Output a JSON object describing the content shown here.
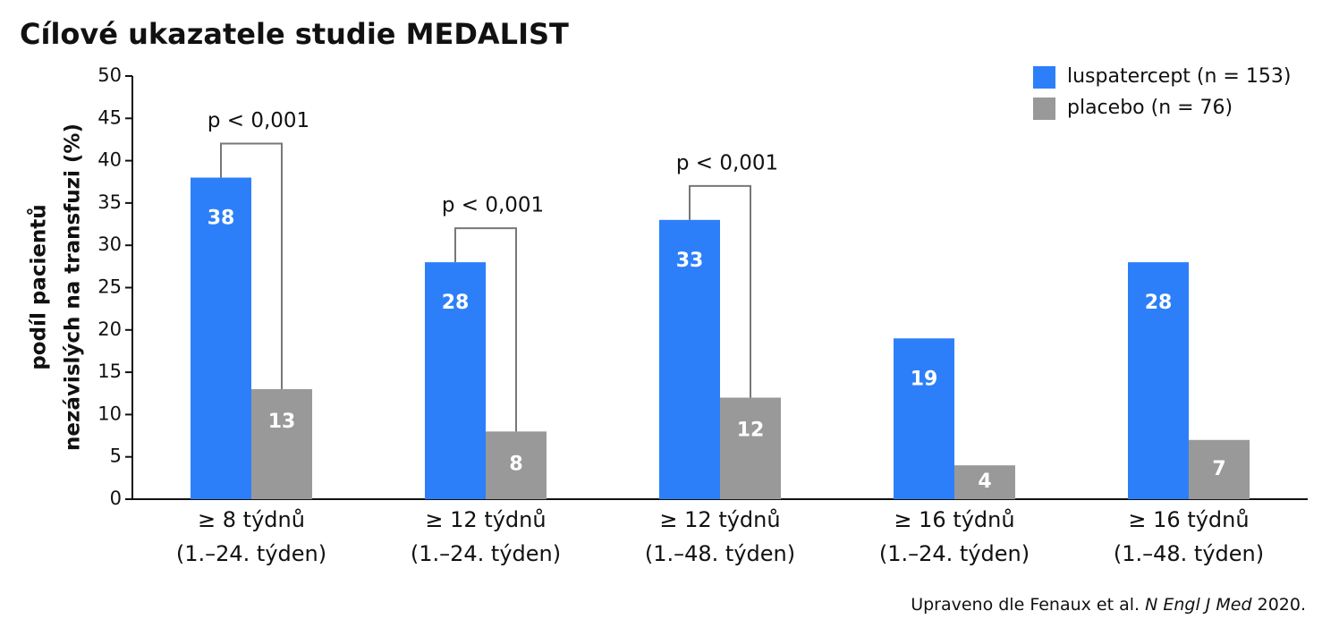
{
  "chart_data": {
    "type": "bar",
    "title": "Cílové ukazatele studie MEDALIST",
    "ylabel": [
      "podíl pacientů",
      "nezávislých na transfuzi (%)"
    ],
    "categories": [
      [
        "≥ 8 týdnů",
        "(1.–24. týden)"
      ],
      [
        "≥ 12 týdnů",
        "(1.–24. týden)"
      ],
      [
        "≥ 12 týdnů",
        "(1.–48. týden)"
      ],
      [
        "≥ 16 týdnů",
        "(1.–24. týden)"
      ],
      [
        "≥ 16 týdnů",
        "(1.–48. týden)"
      ]
    ],
    "series": [
      {
        "name": "luspatercept (n = 153)",
        "color": "#2d7ff9",
        "values": [
          38,
          28,
          33,
          19,
          28
        ]
      },
      {
        "name": "placebo (n = 76)",
        "color": "#999999",
        "values": [
          13,
          8,
          12,
          4,
          7
        ]
      }
    ],
    "significance": [
      "p < 0,001",
      "p < 0,001",
      "p < 0,001",
      null,
      null
    ],
    "ylim": [
      0,
      50
    ],
    "yticks": [
      0,
      5,
      10,
      15,
      20,
      25,
      30,
      35,
      40,
      45,
      50
    ],
    "legend": "top-right",
    "source": [
      "Upraveno dle Fenaux et al. ",
      "N Engl J Med",
      " 2020."
    ]
  }
}
